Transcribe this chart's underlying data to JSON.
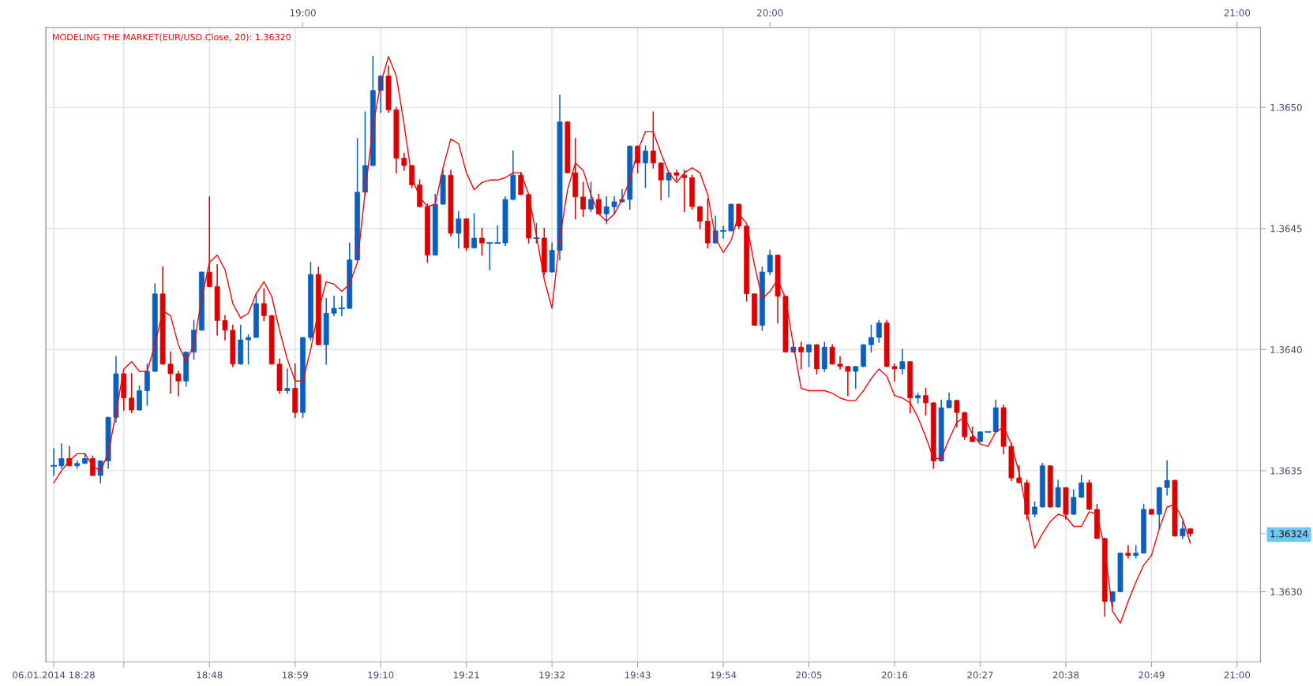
{
  "chart_data": {
    "type": "candlestick",
    "x": [
      "2014-01-06T18:28",
      "2014-01-06T18:29",
      "2014-01-06T18:30",
      "2014-01-06T18:31",
      "2014-01-06T18:32",
      "2014-01-06T18:33",
      "2014-01-06T18:34",
      "2014-01-06T18:35",
      "2014-01-06T18:36",
      "2014-01-06T18:37",
      "2014-01-06T18:38",
      "2014-01-06T18:39",
      "2014-01-06T18:40",
      "2014-01-06T18:41",
      "2014-01-06T18:42",
      "2014-01-06T18:43",
      "2014-01-06T18:44",
      "2014-01-06T18:45",
      "2014-01-06T18:46",
      "2014-01-06T18:47",
      "2014-01-06T18:48",
      "2014-01-06T18:49",
      "2014-01-06T18:50",
      "2014-01-06T18:51",
      "2014-01-06T18:52",
      "2014-01-06T18:53",
      "2014-01-06T18:54",
      "2014-01-06T18:55",
      "2014-01-06T18:56",
      "2014-01-06T18:57",
      "2014-01-06T18:58",
      "2014-01-06T18:59",
      "2014-01-06T19:00",
      "2014-01-06T19:01",
      "2014-01-06T19:02",
      "2014-01-06T19:03",
      "2014-01-06T19:04",
      "2014-01-06T19:05",
      "2014-01-06T19:06",
      "2014-01-06T19:07",
      "2014-01-06T19:08",
      "2014-01-06T19:09",
      "2014-01-06T19:10",
      "2014-01-06T19:11",
      "2014-01-06T19:12",
      "2014-01-06T19:13",
      "2014-01-06T19:14",
      "2014-01-06T19:15",
      "2014-01-06T19:16",
      "2014-01-06T19:17",
      "2014-01-06T19:18",
      "2014-01-06T19:19",
      "2014-01-06T19:20",
      "2014-01-06T19:21",
      "2014-01-06T19:22",
      "2014-01-06T19:23",
      "2014-01-06T19:24",
      "2014-01-06T19:25",
      "2014-01-06T19:26",
      "2014-01-06T19:27",
      "2014-01-06T19:28",
      "2014-01-06T19:29",
      "2014-01-06T19:30",
      "2014-01-06T19:31",
      "2014-01-06T19:32",
      "2014-01-06T19:33",
      "2014-01-06T19:34",
      "2014-01-06T19:35",
      "2014-01-06T19:36",
      "2014-01-06T19:37",
      "2014-01-06T19:38",
      "2014-01-06T19:39",
      "2014-01-06T19:40",
      "2014-01-06T19:41",
      "2014-01-06T19:42",
      "2014-01-06T19:43",
      "2014-01-06T19:44",
      "2014-01-06T19:45",
      "2014-01-06T19:46",
      "2014-01-06T19:47",
      "2014-01-06T19:48",
      "2014-01-06T19:49",
      "2014-01-06T19:50",
      "2014-01-06T19:51",
      "2014-01-06T19:52",
      "2014-01-06T19:53",
      "2014-01-06T19:54",
      "2014-01-06T19:55",
      "2014-01-06T19:56",
      "2014-01-06T19:57",
      "2014-01-06T19:58",
      "2014-01-06T19:59",
      "2014-01-06T20:00",
      "2014-01-06T20:01",
      "2014-01-06T20:02",
      "2014-01-06T20:03",
      "2014-01-06T20:04",
      "2014-01-06T20:05",
      "2014-01-06T20:06",
      "2014-01-06T20:07",
      "2014-01-06T20:08",
      "2014-01-06T20:09",
      "2014-01-06T20:10",
      "2014-01-06T20:11",
      "2014-01-06T20:12",
      "2014-01-06T20:13",
      "2014-01-06T20:14",
      "2014-01-06T20:15",
      "2014-01-06T20:16",
      "2014-01-06T20:17",
      "2014-01-06T20:18",
      "2014-01-06T20:19",
      "2014-01-06T20:20",
      "2014-01-06T20:21",
      "2014-01-06T20:22",
      "2014-01-06T20:23",
      "2014-01-06T20:24",
      "2014-01-06T20:25",
      "2014-01-06T20:26",
      "2014-01-06T20:27",
      "2014-01-06T20:28",
      "2014-01-06T20:29",
      "2014-01-06T20:30",
      "2014-01-06T20:31",
      "2014-01-06T20:32",
      "2014-01-06T20:33",
      "2014-01-06T20:34",
      "2014-01-06T20:35",
      "2014-01-06T20:36",
      "2014-01-06T20:37",
      "2014-01-06T20:38",
      "2014-01-06T20:39",
      "2014-01-06T20:40",
      "2014-01-06T20:41",
      "2014-01-06T20:42",
      "2014-01-06T20:43",
      "2014-01-06T20:44",
      "2014-01-06T20:45",
      "2014-01-06T20:46",
      "2014-01-06T20:47",
      "2014-01-06T20:48",
      "2014-01-06T20:49",
      "2014-01-06T20:50",
      "2014-01-06T20:51",
      "2014-01-06T20:52",
      "2014-01-06T20:53",
      "2014-01-06T20:54"
    ],
    "xlim": [
      "2014-01-06T18:27",
      "2014-01-06T21:03"
    ],
    "xticks": [
      {
        "value": "2014-01-06T18:28",
        "label": "06.01.2014 18:28"
      },
      {
        "value": "2014-01-06T18:37",
        "label": null
      },
      {
        "value": "2014-01-06T18:48",
        "label": "18:48"
      },
      {
        "value": "2014-01-06T18:59",
        "label": "18:59"
      },
      {
        "value": "2014-01-06T19:10",
        "label": "19:10"
      },
      {
        "value": "2014-01-06T19:21",
        "label": "19:21"
      },
      {
        "value": "2014-01-06T19:32",
        "label": "19:32"
      },
      {
        "value": "2014-01-06T19:43",
        "label": "19:43"
      },
      {
        "value": "2014-01-06T19:54",
        "label": "19:54"
      },
      {
        "value": "2014-01-06T20:05",
        "label": "20:05"
      },
      {
        "value": "2014-01-06T20:16",
        "label": "20:16"
      },
      {
        "value": "2014-01-06T20:27",
        "label": "20:27"
      },
      {
        "value": "2014-01-06T20:38",
        "label": "20:38"
      },
      {
        "value": "2014-01-06T20:49",
        "label": "20:49"
      },
      {
        "value": "2014-01-06T21:00",
        "label": "21:00"
      }
    ],
    "x2lim": [
      "2014-01-06T18:27",
      "2014-01-06T21:03"
    ],
    "x2ticks": [
      {
        "value": "2014-01-06T19:00",
        "label": "19:00"
      },
      {
        "value": "2014-01-06T20:00",
        "label": "20:00"
      },
      {
        "value": "2014-01-06T21:00",
        "label": "21:00"
      }
    ],
    "ylim": [
      1.36271,
      1.36533
    ],
    "yticks": [
      {
        "value": 1.363,
        "label": "1.3630"
      },
      {
        "value": 1.3635,
        "label": "1.3635"
      },
      {
        "value": 1.364,
        "label": "1.3640"
      },
      {
        "value": 1.3645,
        "label": "1.3645"
      },
      {
        "value": 1.365,
        "label": "1.3650"
      },
      {
        "value": 1.36324,
        "label": "1.36324"
      }
    ],
    "grid": true,
    "legend": "top left",
    "series": [
      {
        "type": "candlestick",
        "ohlc": [
          [
            1.36352,
            1.36359,
            1.36348,
            1.36352
          ],
          [
            1.36352,
            1.36361,
            1.36351,
            1.36355
          ],
          [
            1.36355,
            1.3636,
            1.36352,
            1.36352
          ],
          [
            1.36352,
            1.36354,
            1.36351,
            1.36353
          ],
          [
            1.36353,
            1.36357,
            1.36353,
            1.36355
          ],
          [
            1.36355,
            1.36356,
            1.36348,
            1.36348
          ],
          [
            1.36348,
            1.36354,
            1.36345,
            1.36354
          ],
          [
            1.36354,
            1.36372,
            1.36351,
            1.36372
          ],
          [
            1.36372,
            1.36397,
            1.3637,
            1.3639
          ],
          [
            1.3639,
            1.3639,
            1.36375,
            1.3638
          ],
          [
            1.3638,
            1.3639,
            1.36374,
            1.36375
          ],
          [
            1.36375,
            1.36385,
            1.36375,
            1.36383
          ],
          [
            1.36383,
            1.36394,
            1.36377,
            1.36391
          ],
          [
            1.36391,
            1.36427,
            1.36391,
            1.36423
          ],
          [
            1.36423,
            1.36434,
            1.36394,
            1.36394
          ],
          [
            1.36394,
            1.36399,
            1.36382,
            1.3639
          ],
          [
            1.3639,
            1.36391,
            1.36381,
            1.36387
          ],
          [
            1.36387,
            1.36399,
            1.36385,
            1.36399
          ],
          [
            1.36399,
            1.36412,
            1.36396,
            1.36408
          ],
          [
            1.36408,
            1.36432,
            1.36408,
            1.36432
          ],
          [
            1.36432,
            1.36463,
            1.36426,
            1.36426
          ],
          [
            1.36426,
            1.36435,
            1.36406,
            1.36412
          ],
          [
            1.36412,
            1.36414,
            1.36404,
            1.36408
          ],
          [
            1.36408,
            1.3641,
            1.36393,
            1.36394
          ],
          [
            1.36394,
            1.3641,
            1.36394,
            1.36404
          ],
          [
            1.36404,
            1.36406,
            1.36394,
            1.36405
          ],
          [
            1.36405,
            1.36423,
            1.36405,
            1.36419
          ],
          [
            1.36419,
            1.36425,
            1.36412,
            1.36414
          ],
          [
            1.36414,
            1.36414,
            1.36394,
            1.36394
          ],
          [
            1.36394,
            1.36396,
            1.36382,
            1.36383
          ],
          [
            1.36383,
            1.36392,
            1.36382,
            1.36384
          ],
          [
            1.36384,
            1.36394,
            1.36372,
            1.36374
          ],
          [
            1.36374,
            1.36405,
            1.36372,
            1.36405
          ],
          [
            1.36405,
            1.36436,
            1.36404,
            1.36431
          ],
          [
            1.36431,
            1.36434,
            1.36402,
            1.36402
          ],
          [
            1.36402,
            1.36421,
            1.36394,
            1.36415
          ],
          [
            1.36415,
            1.36422,
            1.36414,
            1.36417
          ],
          [
            1.36417,
            1.36422,
            1.36414,
            1.36417
          ],
          [
            1.36417,
            1.36444,
            1.36417,
            1.36437
          ],
          [
            1.36437,
            1.36487,
            1.36437,
            1.36465
          ],
          [
            1.36465,
            1.36498,
            1.36464,
            1.36476
          ],
          [
            1.36476,
            1.36521,
            1.36476,
            1.36507
          ],
          [
            1.36507,
            1.36513,
            1.36498,
            1.36513
          ],
          [
            1.36513,
            1.36517,
            1.36498,
            1.36499
          ],
          [
            1.36499,
            1.365,
            1.36473,
            1.36479
          ],
          [
            1.36479,
            1.36481,
            1.36474,
            1.36476
          ],
          [
            1.36476,
            1.36476,
            1.36467,
            1.36468
          ],
          [
            1.36468,
            1.3647,
            1.36459,
            1.36459
          ],
          [
            1.36459,
            1.3646,
            1.36436,
            1.36439
          ],
          [
            1.36439,
            1.36464,
            1.36439,
            1.3646
          ],
          [
            1.3646,
            1.36474,
            1.3646,
            1.36472
          ],
          [
            1.36472,
            1.36474,
            1.36447,
            1.36448
          ],
          [
            1.36448,
            1.36457,
            1.36442,
            1.36454
          ],
          [
            1.36454,
            1.36454,
            1.36441,
            1.36442
          ],
          [
            1.36442,
            1.36456,
            1.36442,
            1.36446
          ],
          [
            1.36446,
            1.3645,
            1.36439,
            1.36444
          ],
          [
            1.36444,
            1.36444,
            1.36433,
            1.36444
          ],
          [
            1.36444,
            1.36451,
            1.36444,
            1.36444
          ],
          [
            1.36444,
            1.36463,
            1.36443,
            1.36462
          ],
          [
            1.36462,
            1.36482,
            1.36462,
            1.36472
          ],
          [
            1.36472,
            1.36473,
            1.36464,
            1.36464
          ],
          [
            1.36464,
            1.36464,
            1.36444,
            1.36446
          ],
          [
            1.36446,
            1.36452,
            1.36444,
            1.36446
          ],
          [
            1.36446,
            1.3645,
            1.36431,
            1.36432
          ],
          [
            1.36432,
            1.36444,
            1.36432,
            1.36441
          ],
          [
            1.36441,
            1.36505,
            1.36437,
            1.36494
          ],
          [
            1.36494,
            1.36494,
            1.36473,
            1.36473
          ],
          [
            1.36473,
            1.36487,
            1.36454,
            1.36463
          ],
          [
            1.36463,
            1.36469,
            1.36455,
            1.36458
          ],
          [
            1.36458,
            1.36469,
            1.36457,
            1.36462
          ],
          [
            1.36462,
            1.36464,
            1.36456,
            1.36456
          ],
          [
            1.36456,
            1.36463,
            1.36452,
            1.36459
          ],
          [
            1.36459,
            1.36463,
            1.36456,
            1.36461
          ],
          [
            1.36461,
            1.36466,
            1.36461,
            1.36462
          ],
          [
            1.36462,
            1.36484,
            1.36458,
            1.36484
          ],
          [
            1.36484,
            1.36484,
            1.36473,
            1.36477
          ],
          [
            1.36477,
            1.36484,
            1.36467,
            1.36482
          ],
          [
            1.36482,
            1.36498,
            1.36475,
            1.36477
          ],
          [
            1.36477,
            1.36477,
            1.36462,
            1.3647
          ],
          [
            1.3647,
            1.36473,
            1.36463,
            1.36473
          ],
          [
            1.36473,
            1.36474,
            1.3647,
            1.36472
          ],
          [
            1.36472,
            1.36474,
            1.36457,
            1.36471
          ],
          [
            1.36471,
            1.36472,
            1.36458,
            1.36459
          ],
          [
            1.36459,
            1.36459,
            1.3645,
            1.36453
          ],
          [
            1.36453,
            1.36462,
            1.36442,
            1.36444
          ],
          [
            1.36444,
            1.36455,
            1.36444,
            1.36449
          ],
          [
            1.36449,
            1.36451,
            1.36446,
            1.36449
          ],
          [
            1.36449,
            1.3646,
            1.36449,
            1.3646
          ],
          [
            1.3646,
            1.3646,
            1.3645,
            1.36451
          ],
          [
            1.36451,
            1.36451,
            1.3642,
            1.36423
          ],
          [
            1.36423,
            1.36423,
            1.3641,
            1.3641
          ],
          [
            1.3641,
            1.36434,
            1.36408,
            1.36432
          ],
          [
            1.36432,
            1.36441,
            1.36431,
            1.36439
          ],
          [
            1.36439,
            1.36439,
            1.36411,
            1.36422
          ],
          [
            1.36422,
            1.36422,
            1.36399,
            1.36399
          ],
          [
            1.36399,
            1.36403,
            1.36399,
            1.36401
          ],
          [
            1.36401,
            1.36403,
            1.36392,
            1.36399
          ],
          [
            1.36399,
            1.36402,
            1.36393,
            1.36402
          ],
          [
            1.36402,
            1.36402,
            1.3639,
            1.36392
          ],
          [
            1.36392,
            1.36403,
            1.36391,
            1.36401
          ],
          [
            1.36401,
            1.36402,
            1.36394,
            1.36394
          ],
          [
            1.36394,
            1.36397,
            1.36392,
            1.36393
          ],
          [
            1.36393,
            1.36393,
            1.36381,
            1.36391
          ],
          [
            1.36391,
            1.36393,
            1.36384,
            1.36393
          ],
          [
            1.36393,
            1.36402,
            1.36393,
            1.36402
          ],
          [
            1.36402,
            1.3641,
            1.36399,
            1.36405
          ],
          [
            1.36405,
            1.36412,
            1.36403,
            1.36411
          ],
          [
            1.36411,
            1.36412,
            1.36393,
            1.36393
          ],
          [
            1.36393,
            1.36394,
            1.36387,
            1.36392
          ],
          [
            1.36392,
            1.364,
            1.3639,
            1.36395
          ],
          [
            1.36395,
            1.36395,
            1.36374,
            1.3638
          ],
          [
            1.3638,
            1.36382,
            1.36378,
            1.36381
          ],
          [
            1.36381,
            1.36384,
            1.36373,
            1.36378
          ],
          [
            1.36378,
            1.36378,
            1.36351,
            1.36354
          ],
          [
            1.36354,
            1.36379,
            1.36354,
            1.36376
          ],
          [
            1.36376,
            1.36382,
            1.36376,
            1.36379
          ],
          [
            1.36379,
            1.36379,
            1.36368,
            1.36374
          ],
          [
            1.36374,
            1.36374,
            1.36363,
            1.36364
          ],
          [
            1.36364,
            1.36368,
            1.36362,
            1.36362
          ],
          [
            1.36362,
            1.36366,
            1.36362,
            1.36366
          ],
          [
            1.36366,
            1.36366,
            1.36366,
            1.36366
          ],
          [
            1.36366,
            1.36379,
            1.36366,
            1.36376
          ],
          [
            1.36376,
            1.36377,
            1.36357,
            1.3636
          ],
          [
            1.3636,
            1.36361,
            1.36346,
            1.36347
          ],
          [
            1.36347,
            1.36352,
            1.36345,
            1.36345
          ],
          [
            1.36345,
            1.36346,
            1.3633,
            1.36332
          ],
          [
            1.36332,
            1.36337,
            1.36331,
            1.36335
          ],
          [
            1.36335,
            1.36353,
            1.36335,
            1.36352
          ],
          [
            1.36352,
            1.36352,
            1.36335,
            1.36335
          ],
          [
            1.36335,
            1.36346,
            1.36335,
            1.36343
          ],
          [
            1.36343,
            1.36343,
            1.3633,
            1.36332
          ],
          [
            1.36332,
            1.36342,
            1.36332,
            1.36339
          ],
          [
            1.36339,
            1.36348,
            1.36339,
            1.36345
          ],
          [
            1.36345,
            1.36346,
            1.36334,
            1.36334
          ],
          [
            1.36334,
            1.36336,
            1.36322,
            1.36322
          ],
          [
            1.36322,
            1.36322,
            1.3629,
            1.36296
          ],
          [
            1.36296,
            1.363,
            1.36294,
            1.363
          ],
          [
            1.363,
            1.36316,
            1.363,
            1.36316
          ],
          [
            1.36316,
            1.36319,
            1.36314,
            1.36315
          ],
          [
            1.36315,
            1.36319,
            1.36314,
            1.36316
          ],
          [
            1.36316,
            1.36336,
            1.36316,
            1.36334
          ],
          [
            1.36334,
            1.36334,
            1.36332,
            1.36332
          ],
          [
            1.36332,
            1.36343,
            1.36326,
            1.36343
          ],
          [
            1.36343,
            1.36354,
            1.3634,
            1.36346
          ],
          [
            1.36346,
            1.36346,
            1.36323,
            1.36323
          ],
          [
            1.36323,
            1.36329,
            1.36322,
            1.36326
          ],
          [
            1.36326,
            1.36326,
            1.36323,
            1.36324
          ]
        ],
        "colors": [
          "#0a5fbf",
          "#0a5fbf",
          "#dd0000",
          "#0a5fbf",
          "#0a5fbf",
          "#dd0000",
          "#0a5fbf",
          "#0a5fbf",
          "#0a5fbf",
          "#dd0000",
          "#dd0000",
          "#0a5fbf",
          "#0a5fbf",
          "#0a5fbf",
          "#dd0000",
          "#dd0000",
          "#dd0000",
          "#0a5fbf",
          "#0a5fbf",
          "#0a5fbf",
          "#dd0000",
          "#dd0000",
          "#dd0000",
          "#dd0000",
          "#0a5fbf",
          "#0a5fbf",
          "#0a5fbf",
          "#dd0000",
          "#dd0000",
          "#dd0000",
          "#0a5fbf",
          "#dd0000",
          "#0a5fbf",
          "#0a5fbf",
          "#dd0000",
          "#0a5fbf",
          "#0a5fbf",
          "#0a5fbf",
          "#0a5fbf",
          "#0a5fbf",
          "#0a5fbf",
          "#0a5fbf",
          "#0a5fbf",
          "#dd0000",
          "#dd0000",
          "#dd0000",
          "#dd0000",
          "#dd0000",
          "#dd0000",
          "#0a5fbf",
          "#0a5fbf",
          "#dd0000",
          "#0a5fbf",
          "#dd0000",
          "#0a5fbf",
          "#dd0000",
          "#0a5fbf",
          "#0a5fbf",
          "#0a5fbf",
          "#0a5fbf",
          "#dd0000",
          "#dd0000",
          "#0a5fbf",
          "#dd0000",
          "#0a5fbf",
          "#0a5fbf",
          "#dd0000",
          "#dd0000",
          "#dd0000",
          "#0a5fbf",
          "#dd0000",
          "#0a5fbf",
          "#0a5fbf",
          "#0a5fbf",
          "#0a5fbf",
          "#dd0000",
          "#0a5fbf",
          "#dd0000",
          "#dd0000",
          "#0a5fbf",
          "#dd0000",
          "#dd0000",
          "#dd0000",
          "#dd0000",
          "#dd0000",
          "#0a5fbf",
          "#0a5fbf",
          "#0a5fbf",
          "#dd0000",
          "#dd0000",
          "#dd0000",
          "#0a5fbf",
          "#0a5fbf",
          "#dd0000",
          "#dd0000",
          "#0a5fbf",
          "#dd0000",
          "#0a5fbf",
          "#dd0000",
          "#0a5fbf",
          "#dd0000",
          "#dd0000",
          "#dd0000",
          "#0a5fbf",
          "#0a5fbf",
          "#0a5fbf",
          "#0a5fbf",
          "#dd0000",
          "#dd0000",
          "#0a5fbf",
          "#dd0000",
          "#0a5fbf",
          "#dd0000",
          "#dd0000",
          "#0a5fbf",
          "#0a5fbf",
          "#dd0000",
          "#dd0000",
          "#dd0000",
          "#0a5fbf",
          "#0a5fbf",
          "#0a5fbf",
          "#dd0000",
          "#dd0000",
          "#dd0000",
          "#dd0000",
          "#0a5fbf",
          "#0a5fbf",
          "#dd0000",
          "#0a5fbf",
          "#dd0000",
          "#0a5fbf",
          "#0a5fbf",
          "#dd0000",
          "#dd0000",
          "#dd0000",
          "#0a5fbf",
          "#0a5fbf",
          "#dd0000",
          "#0a5fbf",
          "#0a5fbf",
          "#dd0000",
          "#0a5fbf",
          "#0a5fbf",
          "#dd0000",
          "#0a5fbf",
          "#dd0000"
        ]
      },
      {
        "type": "line",
        "name": "MODELING THE MARKET(EUR/USD.Close, 20): 1.36320",
        "color": "#ff0000",
        "values": [
          1.36345,
          1.3635,
          1.36354,
          1.36357,
          1.36357,
          1.36352,
          1.3635,
          1.36357,
          1.36374,
          1.36392,
          1.36395,
          1.36391,
          1.36391,
          1.36402,
          1.36416,
          1.36414,
          1.36402,
          1.36395,
          1.36402,
          1.36421,
          1.36436,
          1.36439,
          1.36433,
          1.36419,
          1.36413,
          1.36415,
          1.36423,
          1.36428,
          1.36422,
          1.36408,
          1.36396,
          1.36387,
          1.36387,
          1.364,
          1.36416,
          1.36428,
          1.36427,
          1.36424,
          1.36427,
          1.36436,
          1.36465,
          1.36492,
          1.3651,
          1.36521,
          1.36513,
          1.36493,
          1.36471,
          1.36463,
          1.36459,
          1.3646,
          1.36475,
          1.36487,
          1.36485,
          1.36473,
          1.36466,
          1.36469,
          1.3647,
          1.3647,
          1.36471,
          1.36473,
          1.36473,
          1.36464,
          1.36447,
          1.36429,
          1.36417,
          1.36446,
          1.36466,
          1.36477,
          1.36474,
          1.36464,
          1.36456,
          1.36453,
          1.36456,
          1.36462,
          1.3647,
          1.36482,
          1.3649,
          1.3649,
          1.36481,
          1.36473,
          1.36469,
          1.36473,
          1.36475,
          1.36473,
          1.36464,
          1.36446,
          1.3644,
          1.36445,
          1.36456,
          1.36452,
          1.36435,
          1.36421,
          1.36424,
          1.36429,
          1.36421,
          1.36402,
          1.36384,
          1.36383,
          1.36383,
          1.36383,
          1.36382,
          1.3638,
          1.36379,
          1.36379,
          1.36383,
          1.36388,
          1.36392,
          1.36389,
          1.36381,
          1.3638,
          1.36378,
          1.36372,
          1.36364,
          1.36355,
          1.36355,
          1.36363,
          1.3637,
          1.36372,
          1.36365,
          1.36361,
          1.3636,
          1.36366,
          1.36368,
          1.36361,
          1.36349,
          1.36333,
          1.36318,
          1.36324,
          1.36329,
          1.36332,
          1.36331,
          1.36327,
          1.36327,
          1.36333,
          1.36332,
          1.36318,
          1.36292,
          1.36287,
          1.36296,
          1.36304,
          1.36311,
          1.36315,
          1.36326,
          1.36335,
          1.36336,
          1.3633,
          1.3632
        ]
      }
    ],
    "line_style": "solid"
  }
}
